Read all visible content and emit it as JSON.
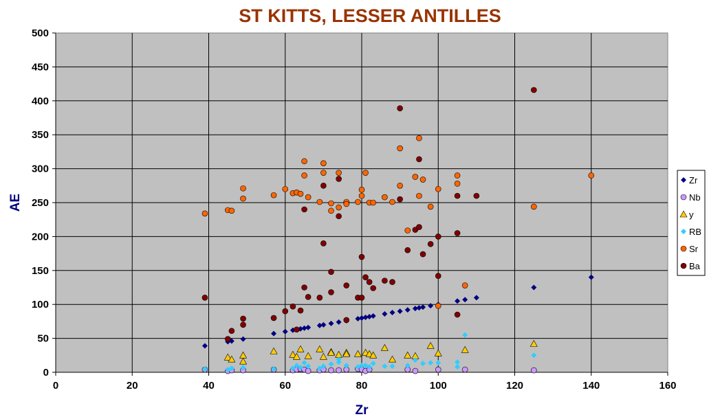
{
  "chart_data": {
    "type": "scatter",
    "title": "ST KITTS, LESSER ANTILLES",
    "xlabel": "Zr",
    "ylabel": "AE",
    "xlim": [
      0,
      160
    ],
    "ylim": [
      0,
      500
    ],
    "x_ticks": [
      0,
      20,
      40,
      60,
      80,
      100,
      120,
      140,
      160
    ],
    "y_ticks": [
      0,
      50,
      100,
      150,
      200,
      250,
      300,
      350,
      400,
      450,
      500
    ],
    "grid": true,
    "plot_background": "#c0c0c0",
    "legend_position": "right",
    "series": [
      {
        "name": "Zr",
        "marker": "diamond",
        "color": "#000080",
        "points": [
          [
            39,
            39
          ],
          [
            45,
            45
          ],
          [
            46,
            46
          ],
          [
            49,
            49
          ],
          [
            57,
            57
          ],
          [
            60,
            60
          ],
          [
            62,
            62
          ],
          [
            63,
            63
          ],
          [
            64,
            64
          ],
          [
            65,
            65
          ],
          [
            66,
            66
          ],
          [
            69,
            69
          ],
          [
            70,
            70
          ],
          [
            72,
            72
          ],
          [
            74,
            74
          ],
          [
            76,
            76
          ],
          [
            79,
            79
          ],
          [
            80,
            80
          ],
          [
            81,
            81
          ],
          [
            82,
            82
          ],
          [
            83,
            83
          ],
          [
            86,
            86
          ],
          [
            88,
            88
          ],
          [
            90,
            90
          ],
          [
            92,
            92
          ],
          [
            94,
            94
          ],
          [
            95,
            95
          ],
          [
            96,
            96
          ],
          [
            98,
            98
          ],
          [
            100,
            100
          ],
          [
            105,
            105
          ],
          [
            107,
            107
          ],
          [
            110,
            110
          ],
          [
            125,
            125
          ],
          [
            140,
            140
          ]
        ]
      },
      {
        "name": "Nb",
        "marker": "circle",
        "color": "#cc99ff",
        "points": [
          [
            39,
            4
          ],
          [
            45,
            2
          ],
          [
            46,
            3
          ],
          [
            49,
            3
          ],
          [
            57,
            4
          ],
          [
            62,
            3
          ],
          [
            63,
            4
          ],
          [
            64,
            5
          ],
          [
            65,
            4
          ],
          [
            66,
            2
          ],
          [
            69,
            3
          ],
          [
            70,
            4
          ],
          [
            72,
            3
          ],
          [
            74,
            3
          ],
          [
            76,
            4
          ],
          [
            79,
            5
          ],
          [
            80,
            4
          ],
          [
            81,
            2
          ],
          [
            82,
            4
          ],
          [
            92,
            4
          ],
          [
            94,
            2
          ],
          [
            100,
            4
          ],
          [
            107,
            4
          ],
          [
            125,
            3
          ]
        ]
      },
      {
        "name": "y",
        "marker": "triangle",
        "color": "#ffcc00",
        "points": [
          [
            45,
            22
          ],
          [
            46,
            19
          ],
          [
            49,
            16
          ],
          [
            49,
            25
          ],
          [
            57,
            31
          ],
          [
            62,
            26
          ],
          [
            63,
            23
          ],
          [
            64,
            34
          ],
          [
            66,
            24
          ],
          [
            69,
            34
          ],
          [
            70,
            23
          ],
          [
            72,
            30
          ],
          [
            72,
            29
          ],
          [
            74,
            26
          ],
          [
            76,
            29
          ],
          [
            76,
            27
          ],
          [
            79,
            27
          ],
          [
            81,
            29
          ],
          [
            82,
            27
          ],
          [
            83,
            25
          ],
          [
            86,
            36
          ],
          [
            88,
            19
          ],
          [
            92,
            25
          ],
          [
            94,
            24
          ],
          [
            98,
            39
          ],
          [
            100,
            28
          ],
          [
            107,
            33
          ],
          [
            125,
            42
          ]
        ]
      },
      {
        "name": "RB",
        "marker": "diamond",
        "color": "#33ccff",
        "points": [
          [
            39,
            5
          ],
          [
            45,
            4
          ],
          [
            46,
            6
          ],
          [
            49,
            7
          ],
          [
            57,
            5
          ],
          [
            62,
            6
          ],
          [
            63,
            10
          ],
          [
            64,
            7
          ],
          [
            65,
            14
          ],
          [
            66,
            9
          ],
          [
            69,
            6
          ],
          [
            70,
            9
          ],
          [
            72,
            12
          ],
          [
            74,
            15
          ],
          [
            74,
            19
          ],
          [
            76,
            10
          ],
          [
            79,
            8
          ],
          [
            80,
            10
          ],
          [
            81,
            10
          ],
          [
            82,
            8
          ],
          [
            83,
            13
          ],
          [
            86,
            9
          ],
          [
            88,
            9
          ],
          [
            92,
            10
          ],
          [
            94,
            18
          ],
          [
            96,
            13
          ],
          [
            98,
            14
          ],
          [
            100,
            14
          ],
          [
            105,
            15
          ],
          [
            105,
            8
          ],
          [
            107,
            55
          ],
          [
            125,
            25
          ]
        ]
      },
      {
        "name": "Sr",
        "marker": "circle",
        "color": "#ff6600",
        "points": [
          [
            39,
            234
          ],
          [
            45,
            239
          ],
          [
            46,
            238
          ],
          [
            49,
            271
          ],
          [
            49,
            256
          ],
          [
            57,
            261
          ],
          [
            60,
            270
          ],
          [
            62,
            264
          ],
          [
            63,
            265
          ],
          [
            64,
            263
          ],
          [
            65,
            290
          ],
          [
            65,
            311
          ],
          [
            66,
            258
          ],
          [
            69,
            251
          ],
          [
            70,
            294
          ],
          [
            70,
            308
          ],
          [
            72,
            249
          ],
          [
            72,
            238
          ],
          [
            74,
            294
          ],
          [
            74,
            243
          ],
          [
            76,
            251
          ],
          [
            76,
            248
          ],
          [
            79,
            251
          ],
          [
            80,
            269
          ],
          [
            80,
            260
          ],
          [
            81,
            294
          ],
          [
            82,
            250
          ],
          [
            83,
            250
          ],
          [
            86,
            258
          ],
          [
            88,
            251
          ],
          [
            90,
            275
          ],
          [
            90,
            330
          ],
          [
            92,
            209
          ],
          [
            94,
            288
          ],
          [
            95,
            345
          ],
          [
            95,
            260
          ],
          [
            96,
            284
          ],
          [
            98,
            244
          ],
          [
            100,
            270
          ],
          [
            100,
            98
          ],
          [
            105,
            290
          ],
          [
            105,
            278
          ],
          [
            107,
            128
          ],
          [
            125,
            244
          ],
          [
            140,
            290
          ]
        ]
      },
      {
        "name": "Ba",
        "marker": "circle",
        "color": "#800000",
        "points": [
          [
            39,
            110
          ],
          [
            45,
            49
          ],
          [
            46,
            61
          ],
          [
            49,
            79
          ],
          [
            49,
            70
          ],
          [
            57,
            80
          ],
          [
            60,
            90
          ],
          [
            62,
            97
          ],
          [
            63,
            63
          ],
          [
            64,
            91
          ],
          [
            65,
            125
          ],
          [
            65,
            240
          ],
          [
            66,
            111
          ],
          [
            69,
            110
          ],
          [
            70,
            190
          ],
          [
            70,
            275
          ],
          [
            72,
            118
          ],
          [
            72,
            148
          ],
          [
            74,
            285
          ],
          [
            74,
            230
          ],
          [
            76,
            128
          ],
          [
            76,
            77
          ],
          [
            79,
            110
          ],
          [
            80,
            110
          ],
          [
            80,
            170
          ],
          [
            81,
            140
          ],
          [
            82,
            133
          ],
          [
            83,
            124
          ],
          [
            86,
            135
          ],
          [
            88,
            133
          ],
          [
            90,
            389
          ],
          [
            90,
            255
          ],
          [
            92,
            180
          ],
          [
            94,
            210
          ],
          [
            95,
            214
          ],
          [
            95,
            314
          ],
          [
            96,
            174
          ],
          [
            98,
            189
          ],
          [
            100,
            200
          ],
          [
            100,
            142
          ],
          [
            105,
            260
          ],
          [
            105,
            205
          ],
          [
            105,
            85
          ],
          [
            110,
            260
          ],
          [
            125,
            416
          ]
        ]
      }
    ]
  }
}
